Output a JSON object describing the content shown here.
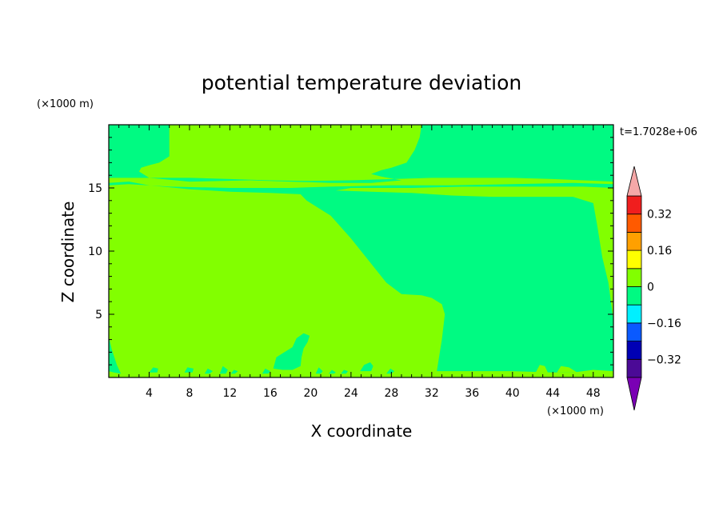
{
  "chart_data": {
    "type": "heatmap",
    "title": "potential temperature deviation",
    "xlabel": "X coordinate",
    "ylabel": "Z coordinate",
    "x_unit": "(×1000 m)",
    "y_unit": "(×1000 m)",
    "time_label": "t=1.7028e+06",
    "xlim": [
      0,
      50
    ],
    "ylim": [
      0,
      20
    ],
    "x_ticks": [
      4,
      8,
      12,
      16,
      20,
      24,
      28,
      32,
      36,
      40,
      44,
      48
    ],
    "y_ticks": [
      5,
      10,
      15
    ],
    "contour_levels": [
      -0.4,
      -0.32,
      -0.24,
      -0.16,
      -0.08,
      0,
      0.08,
      0.16,
      0.24,
      0.32,
      0.4
    ],
    "level_colors": [
      "#4b0a96",
      "#0000b4",
      "#0a5aff",
      "#00f0ff",
      "#00fa82",
      "#82ff00",
      "#ffff00",
      "#ffa000",
      "#ff5a00",
      "#f01e1e"
    ],
    "colorbar_labels": [
      {
        "value": 0.32,
        "text": "0.32"
      },
      {
        "value": 0.16,
        "text": "0.16"
      },
      {
        "value": 0,
        "text": "0"
      },
      {
        "value": -0.16,
        "text": "−0.16"
      },
      {
        "value": -0.32,
        "text": "−0.32"
      }
    ],
    "under_color": "#7a00b4",
    "over_color": "#f5a8a8",
    "regions": [
      {
        "level": "0 to 0.08",
        "color": "#82ff00",
        "points": [
          [
            0,
            0
          ],
          [
            50,
            0
          ],
          [
            50,
            20
          ],
          [
            0,
            20
          ]
        ]
      },
      {
        "level": "-0.08 to 0",
        "color": "#00fa82",
        "points": [
          [
            0,
            15.8
          ],
          [
            0,
            20
          ],
          [
            6,
            20
          ],
          [
            6,
            17.5
          ],
          [
            5,
            17.0
          ],
          [
            4,
            16.8
          ],
          [
            3.2,
            16.6
          ],
          [
            3,
            16.3
          ],
          [
            4,
            15.8
          ],
          [
            8,
            15.5
          ],
          [
            14,
            15.6
          ],
          [
            18,
            15.5
          ],
          [
            22,
            15.4
          ],
          [
            26,
            15.4
          ],
          [
            29,
            15.6
          ],
          [
            27,
            15.9
          ],
          [
            26,
            16.1
          ],
          [
            27,
            16.4
          ],
          [
            28,
            16.6
          ],
          [
            29.5,
            17.0
          ],
          [
            30.3,
            18.0
          ],
          [
            30.8,
            19.0
          ],
          [
            31,
            20
          ],
          [
            50,
            20
          ],
          [
            50,
            15.5
          ],
          [
            47,
            15.6
          ],
          [
            44,
            15.7
          ],
          [
            40,
            15.8
          ],
          [
            35,
            15.8
          ],
          [
            32,
            15.8
          ],
          [
            28,
            15.7
          ],
          [
            24,
            15.6
          ],
          [
            20,
            15.55
          ],
          [
            16,
            15.6
          ],
          [
            12,
            15.7
          ],
          [
            8,
            15.8
          ],
          [
            5,
            15.8
          ],
          [
            2,
            15.8
          ]
        ]
      },
      {
        "level": "-0.08 to 0",
        "color": "#00fa82",
        "points": [
          [
            0,
            15.2
          ],
          [
            0,
            15.4
          ],
          [
            2,
            15.5
          ],
          [
            4,
            15.2
          ],
          [
            8,
            14.9
          ],
          [
            12,
            14.7
          ],
          [
            16,
            14.6
          ],
          [
            19,
            14.5
          ],
          [
            19.6,
            14.0
          ],
          [
            22,
            12.8
          ],
          [
            24,
            11.0
          ],
          [
            26,
            9.0
          ],
          [
            27.5,
            7.5
          ],
          [
            29,
            6.6
          ],
          [
            31,
            6.5
          ],
          [
            32,
            6.3
          ],
          [
            33,
            5.8
          ],
          [
            33.3,
            5.0
          ],
          [
            33.0,
            3.0
          ],
          [
            32.7,
            1.5
          ],
          [
            32.5,
            0.5
          ],
          [
            33,
            0.5
          ],
          [
            36,
            0.5
          ],
          [
            40,
            0.5
          ],
          [
            44,
            0.4
          ],
          [
            46,
            0.4
          ],
          [
            48,
            0.6
          ],
          [
            50,
            0.5
          ],
          [
            50,
            4.5
          ],
          [
            49.5,
            7.5
          ],
          [
            48.9,
            9.5
          ],
          [
            48.4,
            12.0
          ],
          [
            48,
            13.8
          ],
          [
            46,
            14.3
          ],
          [
            42,
            14.3
          ],
          [
            38,
            14.3
          ],
          [
            34,
            14.4
          ],
          [
            30,
            14.6
          ],
          [
            26,
            14.7
          ],
          [
            22.5,
            14.8
          ],
          [
            24,
            15.0
          ],
          [
            30,
            15.0
          ],
          [
            35,
            15.1
          ],
          [
            42,
            15.1
          ],
          [
            47,
            15.1
          ],
          [
            50,
            15.0
          ],
          [
            50,
            15.3
          ],
          [
            46,
            15.4
          ],
          [
            40,
            15.3
          ],
          [
            34,
            15.2
          ],
          [
            28,
            15.2
          ],
          [
            22,
            15.1
          ],
          [
            18,
            15.0
          ],
          [
            12,
            15.0
          ],
          [
            6,
            15.1
          ],
          [
            2,
            15.3
          ]
        ]
      },
      {
        "level": "-0.08 to 0",
        "color": "#00fa82",
        "points": [
          [
            0,
            0.5
          ],
          [
            0,
            3.2
          ],
          [
            0.3,
            2.2
          ],
          [
            0.8,
            1.0
          ],
          [
            1.2,
            0.3
          ],
          [
            0.5,
            0.4
          ]
        ]
      },
      {
        "level": "-0.08 to 0",
        "color": "#00fa82",
        "points": [
          [
            16.3,
            0.7
          ],
          [
            16.6,
            1.6
          ],
          [
            17.4,
            2.0
          ],
          [
            18.2,
            2.4
          ],
          [
            18.6,
            3.1
          ],
          [
            19.3,
            3.5
          ],
          [
            19.9,
            3.3
          ],
          [
            19.7,
            2.8
          ],
          [
            19.3,
            2.3
          ],
          [
            19.1,
            1.6
          ],
          [
            19.0,
            0.9
          ],
          [
            18.2,
            0.6
          ],
          [
            17.2,
            0.6
          ]
        ]
      },
      {
        "level": "-0.08 to 0",
        "color": "#00fa82",
        "points": [
          [
            24.9,
            0.5
          ],
          [
            25.3,
            1.0
          ],
          [
            25.9,
            1.2
          ],
          [
            26.2,
            0.9
          ],
          [
            26.0,
            0.5
          ]
        ]
      },
      {
        "level": "-0.08 to 0",
        "color": "#00fa82",
        "points": [
          [
            4.0,
            0.4
          ],
          [
            4.4,
            0.8
          ],
          [
            4.9,
            0.7
          ],
          [
            4.8,
            0.4
          ]
        ]
      },
      {
        "level": "-0.08 to 0",
        "color": "#00fa82",
        "points": [
          [
            7.5,
            0.4
          ],
          [
            7.8,
            0.8
          ],
          [
            8.4,
            0.7
          ],
          [
            8.3,
            0.4
          ]
        ]
      },
      {
        "level": "-0.08 to 0",
        "color": "#00fa82",
        "points": [
          [
            9.5,
            0.3
          ],
          [
            9.8,
            0.7
          ],
          [
            10.3,
            0.5
          ],
          [
            10.0,
            0.3
          ]
        ]
      },
      {
        "level": "-0.08 to 0",
        "color": "#00fa82",
        "points": [
          [
            11.0,
            0.3
          ],
          [
            11.3,
            0.9
          ],
          [
            11.8,
            0.6
          ],
          [
            11.6,
            0.3
          ]
        ]
      },
      {
        "level": "-0.08 to 0",
        "color": "#00fa82",
        "points": [
          [
            12.1,
            0.3
          ],
          [
            12.4,
            0.6
          ],
          [
            12.8,
            0.5
          ],
          [
            12.5,
            0.3
          ]
        ]
      },
      {
        "level": "-0.08 to 0",
        "color": "#00fa82",
        "points": [
          [
            15.2,
            0.3
          ],
          [
            15.5,
            0.7
          ],
          [
            16.0,
            0.5
          ],
          [
            15.8,
            0.3
          ]
        ]
      },
      {
        "level": "-0.08 to 0",
        "color": "#00fa82",
        "points": [
          [
            20.5,
            0.3
          ],
          [
            20.8,
            0.8
          ],
          [
            21.2,
            0.5
          ],
          [
            21.0,
            0.3
          ]
        ]
      },
      {
        "level": "-0.08 to 0",
        "color": "#00fa82",
        "points": [
          [
            21.8,
            0.3
          ],
          [
            22.1,
            0.6
          ],
          [
            22.5,
            0.4
          ],
          [
            22.3,
            0.3
          ]
        ]
      },
      {
        "level": "-0.08 to 0",
        "color": "#00fa82",
        "points": [
          [
            23.0,
            0.3
          ],
          [
            23.3,
            0.6
          ],
          [
            23.7,
            0.5
          ],
          [
            23.5,
            0.3
          ]
        ]
      },
      {
        "level": "-0.08 to 0",
        "color": "#00fa82",
        "points": [
          [
            27.5,
            0.3
          ],
          [
            27.9,
            0.7
          ],
          [
            28.3,
            0.5
          ],
          [
            28.0,
            0.3
          ]
        ]
      },
      {
        "level": "0 to 0.08",
        "color": "#82ff00",
        "points": [
          [
            42.3,
            0.4
          ],
          [
            42.7,
            1.0
          ],
          [
            43.2,
            0.9
          ],
          [
            43.5,
            0.4
          ]
        ]
      },
      {
        "level": "0 to 0.08",
        "color": "#82ff00",
        "points": [
          [
            44.4,
            0.4
          ],
          [
            44.8,
            0.9
          ],
          [
            45.6,
            0.8
          ],
          [
            46.4,
            0.4
          ]
        ]
      },
      {
        "level": "0 to 0.08",
        "color": "#82ff00",
        "points": [
          [
            34.5,
            0.3
          ],
          [
            34.8,
            0.5
          ],
          [
            35.1,
            0.3
          ]
        ]
      },
      {
        "level": "0 to 0.08",
        "color": "#82ff00",
        "points": [
          [
            38.0,
            0.3
          ],
          [
            38.3,
            0.5
          ],
          [
            38.6,
            0.3
          ]
        ]
      }
    ]
  }
}
